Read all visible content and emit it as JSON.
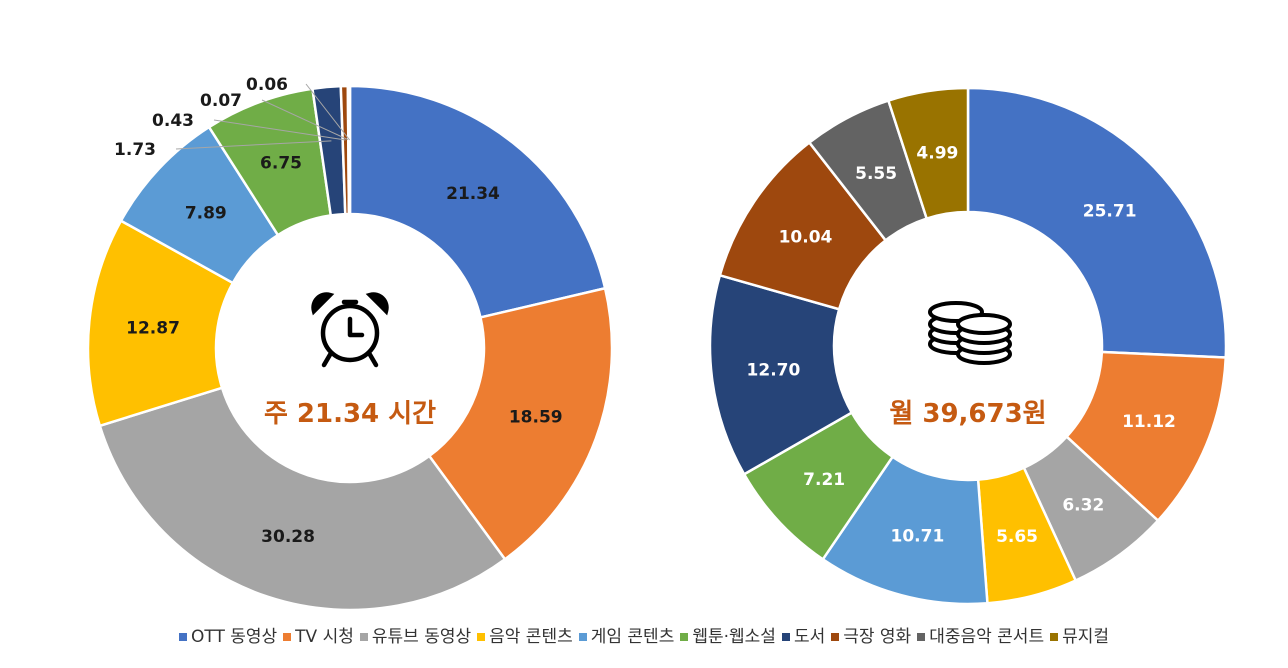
{
  "chart_data": [
    {
      "type": "pie",
      "donut": true,
      "center_text": "주 21.34 시간",
      "center_icon": "alarm-clock-icon",
      "categories": [
        "OTT 동영상",
        "TV 시청",
        "유튜브 동영상",
        "음악 콘텐츠",
        "게임 콘텐츠",
        "웹툰·웹소설",
        "도서",
        "극장 영화",
        "대중음악 콘서트",
        "뮤지컬"
      ],
      "values": [
        21.34,
        18.59,
        30.28,
        12.87,
        7.89,
        6.75,
        1.73,
        0.43,
        0.07,
        0.06
      ],
      "labels": [
        "21.34",
        "18.59",
        "30.28",
        "12.87",
        "7.89",
        "6.75",
        "1.73",
        "0.43",
        "0.07",
        "0.06"
      ]
    },
    {
      "type": "pie",
      "donut": true,
      "center_text": "월 39,673원",
      "center_icon": "coins-icon",
      "categories": [
        "OTT 동영상",
        "TV 시청",
        "유튜브 동영상",
        "음악 콘텐츠",
        "게임 콘텐츠",
        "웹툰·웹소설",
        "도서",
        "극장 영화",
        "대중음악 콘서트",
        "뮤지컬"
      ],
      "values": [
        25.71,
        11.12,
        6.32,
        5.65,
        10.71,
        7.21,
        12.7,
        10.04,
        5.55,
        4.99
      ],
      "labels": [
        "25.71",
        "11.12",
        "6.32",
        "5.65",
        "10.71",
        "7.21",
        "12.70",
        "10.04",
        "5.55",
        "4.99"
      ]
    }
  ],
  "legend": [
    {
      "label": "OTT 동영상",
      "color": "#4472C4"
    },
    {
      "label": "TV 시청",
      "color": "#ED7D31"
    },
    {
      "label": "유튜브 동영상",
      "color": "#A5A5A5"
    },
    {
      "label": "음악 콘텐츠",
      "color": "#FFC000"
    },
    {
      "label": "게임 콘텐츠",
      "color": "#5B9BD5"
    },
    {
      "label": "웹툰·웹소설",
      "color": "#70AD47"
    },
    {
      "label": "도서",
      "color": "#264478"
    },
    {
      "label": "극장 영화",
      "color": "#9E480E"
    },
    {
      "label": "대중음악 콘서트",
      "color": "#636363"
    },
    {
      "label": "뮤지컬",
      "color": "#997300"
    }
  ],
  "colors": {
    "label_dark": "#1a1a1a",
    "label_light": "#ffffff",
    "center_text": "#C55A11"
  }
}
